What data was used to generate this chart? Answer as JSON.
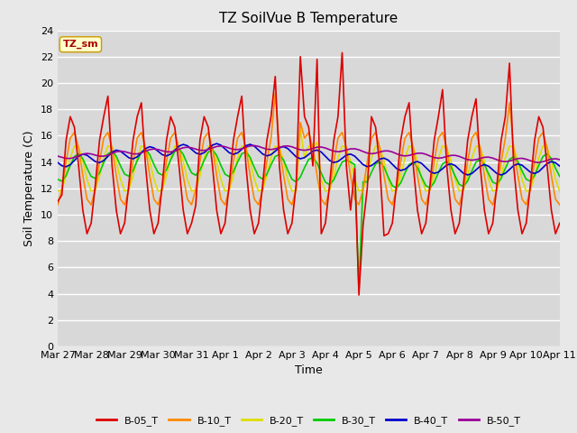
{
  "title": "TZ SoilVue B Temperature",
  "xlabel": "Time",
  "ylabel": "Soil Temperature (C)",
  "annotation": "TZ_sm",
  "ylim": [
    0,
    24
  ],
  "yticks": [
    0,
    2,
    4,
    6,
    8,
    10,
    12,
    14,
    16,
    18,
    20,
    22,
    24
  ],
  "xtick_labels": [
    "Mar 27",
    "Mar 28",
    "Mar 29",
    "Mar 30",
    "Mar 31",
    "Apr 1",
    "Apr 2",
    "Apr 3",
    "Apr 4",
    "Apr 5",
    "Apr 6",
    "Apr 7",
    "Apr 8",
    "Apr 9",
    "Apr 10",
    "Apr 11"
  ],
  "series_colors": {
    "B-05_T": "#dd0000",
    "B-10_T": "#ff8800",
    "B-20_T": "#dddd00",
    "B-30_T": "#00cc00",
    "B-40_T": "#0000cc",
    "B-50_T": "#990099"
  },
  "fig_bg": "#e8e8e8",
  "plot_bg": "#d8d8d8",
  "grid_color": "#ffffff",
  "title_fontsize": 11,
  "axis_label_fontsize": 9,
  "tick_fontsize": 8,
  "legend_fontsize": 8,
  "linewidth": 1.2
}
